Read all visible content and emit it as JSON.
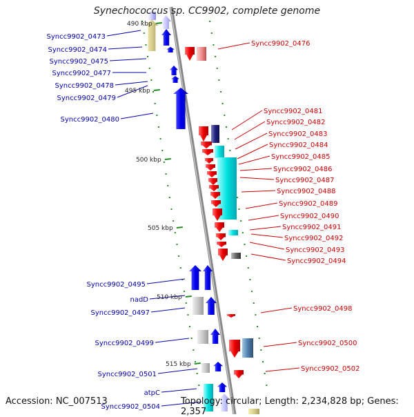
{
  "title": "Synechococcus sp. CC9902, complete genome",
  "footer": {
    "accession": "Accession: NC_007513",
    "summary": "Topology: circular; Length: 2,234,828 bp; Genes: 2,357"
  },
  "colors": {
    "plus_cds": "#0000ee",
    "minus_cds": "#ee0000",
    "rna": "#00e0e0",
    "other": "#c8c8c8",
    "backbone": "#888888",
    "label_blue": "#0000aa",
    "label_red": "#cc0000",
    "tick": "#228b22"
  },
  "scale_labels": [
    "490 kbp",
    "495 kbp",
    "500 kbp",
    "505 kbp",
    "510 kbp",
    "515 kbp"
  ],
  "left_labels": [
    "Syncc9902_0473",
    "Syncc9902_0474",
    "Syncc9902_0475",
    "Syncc9902_0477",
    "Syncc9902_0478",
    "Syncc9902_0479",
    "Syncc9902_0480",
    "Syncc9902_0495",
    "nadD",
    "Syncc9902_0497",
    "Syncc9902_0499",
    "Syncc9902_0501",
    "atpC",
    "Syncc9902_0504"
  ],
  "right_labels": [
    "Syncc9902_0476",
    "Syncc9902_0481",
    "Syncc9902_0482",
    "Syncc9902_0483",
    "Syncc9902_0484",
    "Syncc9902_0485",
    "Syncc9902_0486",
    "Syncc9902_0487",
    "Syncc9902_0488",
    "Syncc9902_0489",
    "Syncc9902_0490",
    "Syncc9902_0491",
    "Syncc9902_0492",
    "Syncc9902_0493",
    "Syncc9902_0494",
    "Syncc9902_0498",
    "Syncc9902_0500",
    "Syncc9902_0502"
  ]
}
